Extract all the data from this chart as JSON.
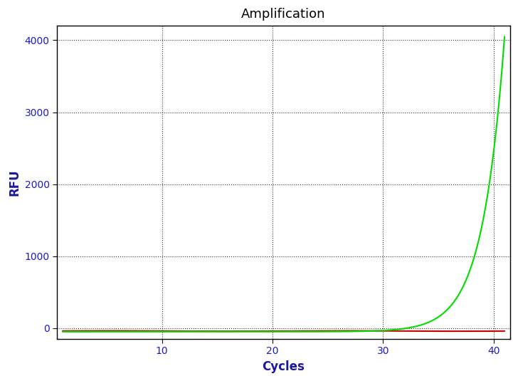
{
  "title": "Amplification",
  "xlabel": "Cycles",
  "ylabel": "RFU",
  "xlim": [
    0.5,
    41.5
  ],
  "ylim": [
    -150,
    4200
  ],
  "yticks": [
    0,
    1000,
    2000,
    3000,
    4000
  ],
  "xticks": [
    10,
    20,
    30,
    40
  ],
  "green_line_color": "#00dd00",
  "red_line_color": "#cc0000",
  "background_color": "#ffffff",
  "title_fontsize": 13,
  "axis_label_fontsize": 12,
  "tick_fontsize": 10,
  "line_width": 1.5,
  "green_takeoff": 30,
  "green_rate": 0.38,
  "green_max": 4050,
  "green_baseline": -50,
  "red_value": -40
}
